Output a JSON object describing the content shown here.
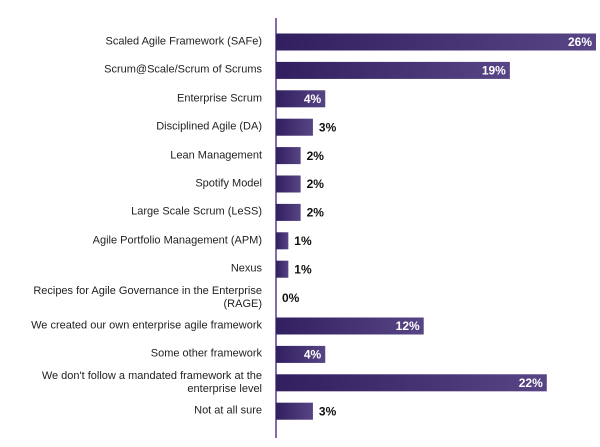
{
  "chart_data": {
    "type": "bar",
    "orientation": "horizontal",
    "categories": [
      "Scaled Agile Framework (SAFe)",
      "Scrum@Scale/Scrum of Scrums",
      "Enterprise Scrum",
      "Disciplined Agile (DA)",
      "Lean Management",
      "Spotify Model",
      "Large Scale Scrum (LeSS)",
      "Agile Portfolio Management (APM)",
      "Nexus",
      "Recipes for Agile Governance in the Enterprise (RAGE)",
      "We created our own enterprise agile framework",
      "Some other framework",
      "We don't follow a mandated framework at the enterprise level",
      "Not at all sure"
    ],
    "values": [
      26,
      19,
      4,
      3,
      2,
      2,
      2,
      1,
      1,
      0,
      12,
      4,
      22,
      3
    ],
    "value_labels": [
      "26%",
      "19%",
      "4%",
      "3%",
      "2%",
      "2%",
      "2%",
      "1%",
      "1%",
      "0%",
      "12%",
      "4%",
      "22%",
      "3%"
    ],
    "color": "#3a2470",
    "xlim": [
      0,
      26
    ]
  }
}
